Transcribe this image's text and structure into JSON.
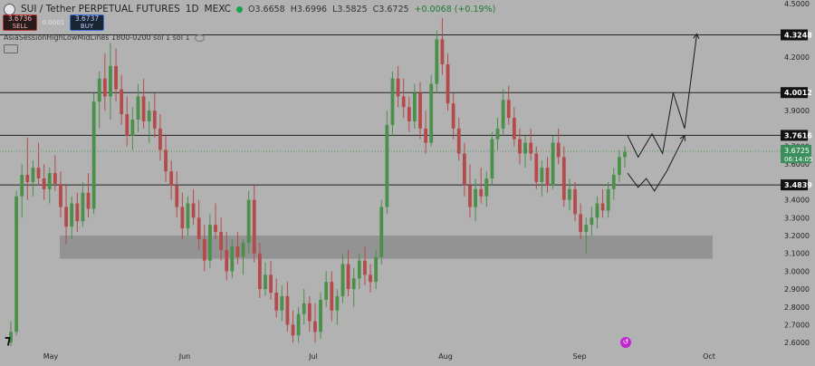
{
  "header": {
    "symbol": "SUI / Tether PERPETUAL FUTURES",
    "interval": "1D",
    "exchange": "MEXC",
    "open": "O3.6658",
    "high": "H3.6996",
    "low": "L3.5825",
    "close": "C3.6725",
    "change": "+0.0068 (+0.19%)"
  },
  "trade": {
    "sell_price": "3.6736",
    "sell_label": "SELL",
    "spread": "0.0001",
    "buy_price": "3.6737",
    "buy_label": "BUY"
  },
  "indicator": {
    "label": "AsiaSessionHighLowMidLines 1800-0200 sol 1 sol 1"
  },
  "colors": {
    "background": "#b2b2b2",
    "up_candle": "#4a8f4a",
    "down_candle": "#b54a4a",
    "zone": "#8d8d8d",
    "level_line": "#222222",
    "current_price_label": "#3a8f5a"
  },
  "icons": [
    "pair-logo-icon",
    "market-open-dot-icon",
    "eye-icon",
    "tradingview-logo-icon",
    "jump-to-date-icon"
  ],
  "chart_data": {
    "type": "candlestick",
    "symbol": "SUI/USDT",
    "timeframe": "1D",
    "ylim": [
      2.55,
      4.5
    ],
    "y_axis_ticks": [
      "2.6000",
      "2.7000",
      "2.8000",
      "2.9000",
      "3.0000",
      "3.1000",
      "3.2000",
      "3.3000",
      "3.4000",
      "3.6000",
      "3.7000",
      "3.9000",
      "4.0000",
      "4.2000",
      "4.5000"
    ],
    "x_axis_ticks": [
      "May",
      "Jun",
      "Jul",
      "Aug",
      "Sep",
      "Oct"
    ],
    "levels": [
      {
        "price": 4.3248,
        "label": "4.3248"
      },
      {
        "price": 4.0012,
        "label": "4.0012"
      },
      {
        "price": 3.7616,
        "label": "3.7616"
      },
      {
        "price": 3.4839,
        "label": "3.4839"
      }
    ],
    "current_price": {
      "price": 3.6725,
      "label": "3.6725",
      "countdown": "06:14:05"
    },
    "demand_zone": {
      "from": 3.07,
      "to": 3.2
    },
    "candles_description": "Daily OHLC from late April to mid September; rally from 2.6 to 4.2 in May, decline to 2.6 in June, rally to 4.4 in late July, pullback to 3.2 in early September, recovery to 3.67",
    "candles": [
      [
        2.6,
        2.72,
        2.58,
        2.66
      ],
      [
        2.66,
        3.45,
        2.64,
        3.42
      ],
      [
        3.42,
        3.6,
        3.3,
        3.54
      ],
      [
        3.54,
        3.75,
        3.4,
        3.5
      ],
      [
        3.5,
        3.62,
        3.42,
        3.58
      ],
      [
        3.58,
        3.72,
        3.48,
        3.52
      ],
      [
        3.52,
        3.6,
        3.4,
        3.46
      ],
      [
        3.46,
        3.58,
        3.38,
        3.55
      ],
      [
        3.55,
        3.65,
        3.45,
        3.49
      ],
      [
        3.49,
        3.56,
        3.3,
        3.36
      ],
      [
        3.36,
        3.48,
        3.15,
        3.25
      ],
      [
        3.25,
        3.42,
        3.18,
        3.38
      ],
      [
        3.38,
        3.44,
        3.22,
        3.28
      ],
      [
        3.28,
        3.5,
        3.25,
        3.44
      ],
      [
        3.44,
        3.55,
        3.3,
        3.35
      ],
      [
        3.35,
        4.0,
        3.32,
        3.95
      ],
      [
        3.95,
        4.12,
        3.8,
        4.08
      ],
      [
        4.08,
        4.22,
        3.9,
        3.98
      ],
      [
        3.98,
        4.28,
        3.85,
        4.15
      ],
      [
        4.15,
        4.25,
        3.95,
        4.02
      ],
      [
        4.02,
        4.1,
        3.82,
        3.88
      ],
      [
        3.88,
        3.98,
        3.7,
        3.76
      ],
      [
        3.76,
        3.92,
        3.68,
        3.85
      ],
      [
        3.85,
        4.05,
        3.78,
        3.98
      ],
      [
        3.98,
        4.08,
        3.8,
        3.84
      ],
      [
        3.84,
        3.95,
        3.72,
        3.9
      ],
      [
        3.9,
        4.0,
        3.75,
        3.8
      ],
      [
        3.8,
        3.88,
        3.62,
        3.68
      ],
      [
        3.68,
        3.76,
        3.5,
        3.56
      ],
      [
        3.56,
        3.62,
        3.4,
        3.48
      ],
      [
        3.48,
        3.56,
        3.3,
        3.36
      ],
      [
        3.36,
        3.44,
        3.18,
        3.24
      ],
      [
        3.24,
        3.42,
        3.2,
        3.38
      ],
      [
        3.38,
        3.46,
        3.26,
        3.3
      ],
      [
        3.3,
        3.4,
        3.12,
        3.18
      ],
      [
        3.18,
        3.26,
        3.0,
        3.06
      ],
      [
        3.06,
        3.32,
        3.02,
        3.26
      ],
      [
        3.26,
        3.38,
        3.18,
        3.22
      ],
      [
        3.22,
        3.3,
        3.06,
        3.12
      ],
      [
        3.12,
        3.22,
        2.95,
        3.0
      ],
      [
        3.0,
        3.18,
        2.96,
        3.14
      ],
      [
        3.14,
        3.22,
        3.04,
        3.08
      ],
      [
        3.08,
        3.18,
        2.98,
        3.16
      ],
      [
        3.16,
        3.45,
        3.1,
        3.4
      ],
      [
        3.4,
        3.48,
        3.05,
        3.1
      ],
      [
        3.1,
        3.16,
        2.85,
        2.9
      ],
      [
        2.9,
        3.05,
        2.86,
        2.98
      ],
      [
        2.98,
        3.06,
        2.84,
        2.88
      ],
      [
        2.88,
        2.96,
        2.74,
        2.78
      ],
      [
        2.78,
        2.92,
        2.72,
        2.86
      ],
      [
        2.86,
        2.94,
        2.66,
        2.7
      ],
      [
        2.7,
        2.78,
        2.6,
        2.64
      ],
      [
        2.64,
        2.8,
        2.6,
        2.76
      ],
      [
        2.76,
        2.9,
        2.7,
        2.82
      ],
      [
        2.82,
        2.86,
        2.66,
        2.72
      ],
      [
        2.72,
        2.82,
        2.6,
        2.66
      ],
      [
        2.66,
        2.88,
        2.62,
        2.84
      ],
      [
        2.84,
        3.0,
        2.8,
        2.94
      ],
      [
        2.94,
        3.0,
        2.72,
        2.78
      ],
      [
        2.78,
        2.9,
        2.7,
        2.86
      ],
      [
        2.86,
        3.1,
        2.82,
        3.04
      ],
      [
        3.04,
        3.12,
        2.86,
        2.9
      ],
      [
        2.9,
        3.02,
        2.8,
        2.96
      ],
      [
        2.96,
        3.1,
        2.9,
        3.06
      ],
      [
        3.06,
        3.14,
        2.92,
        2.98
      ],
      [
        2.98,
        3.04,
        2.88,
        2.94
      ],
      [
        2.94,
        3.12,
        2.9,
        3.08
      ],
      [
        3.08,
        3.4,
        3.04,
        3.36
      ],
      [
        3.36,
        3.9,
        3.32,
        3.82
      ],
      [
        3.82,
        4.12,
        3.76,
        4.08
      ],
      [
        4.08,
        4.15,
        3.92,
        3.98
      ],
      [
        3.98,
        4.08,
        3.86,
        3.92
      ],
      [
        3.92,
        3.98,
        3.78,
        3.84
      ],
      [
        3.84,
        4.05,
        3.8,
        4.0
      ],
      [
        4.0,
        4.06,
        3.74,
        3.8
      ],
      [
        3.8,
        3.9,
        3.66,
        3.72
      ],
      [
        3.72,
        4.1,
        3.7,
        4.05
      ],
      [
        4.05,
        4.35,
        4.0,
        4.3
      ],
      [
        4.3,
        4.42,
        4.1,
        4.16
      ],
      [
        4.16,
        4.22,
        3.9,
        3.94
      ],
      [
        3.94,
        4.0,
        3.74,
        3.8
      ],
      [
        3.8,
        3.86,
        3.62,
        3.66
      ],
      [
        3.66,
        3.72,
        3.42,
        3.48
      ],
      [
        3.48,
        3.6,
        3.3,
        3.36
      ],
      [
        3.36,
        3.52,
        3.28,
        3.46
      ],
      [
        3.46,
        3.58,
        3.38,
        3.42
      ],
      [
        3.42,
        3.56,
        3.36,
        3.52
      ],
      [
        3.52,
        3.78,
        3.48,
        3.74
      ],
      [
        3.74,
        3.86,
        3.68,
        3.8
      ],
      [
        3.8,
        4.02,
        3.76,
        3.96
      ],
      [
        3.96,
        4.04,
        3.82,
        3.86
      ],
      [
        3.86,
        3.92,
        3.7,
        3.74
      ],
      [
        3.74,
        3.8,
        3.6,
        3.66
      ],
      [
        3.66,
        3.76,
        3.58,
        3.72
      ],
      [
        3.72,
        3.8,
        3.62,
        3.66
      ],
      [
        3.66,
        3.7,
        3.46,
        3.5
      ],
      [
        3.5,
        3.62,
        3.42,
        3.58
      ],
      [
        3.58,
        3.64,
        3.44,
        3.48
      ],
      [
        3.48,
        3.76,
        3.46,
        3.72
      ],
      [
        3.72,
        3.8,
        3.6,
        3.64
      ],
      [
        3.64,
        3.7,
        3.36,
        3.4
      ],
      [
        3.4,
        3.52,
        3.34,
        3.46
      ],
      [
        3.46,
        3.5,
        3.28,
        3.32
      ],
      [
        3.32,
        3.38,
        3.18,
        3.22
      ],
      [
        3.22,
        3.3,
        3.1,
        3.26
      ],
      [
        3.26,
        3.36,
        3.2,
        3.3
      ],
      [
        3.3,
        3.42,
        3.24,
        3.38
      ],
      [
        3.38,
        3.46,
        3.3,
        3.34
      ],
      [
        3.34,
        3.5,
        3.3,
        3.46
      ],
      [
        3.46,
        3.58,
        3.4,
        3.54
      ],
      [
        3.54,
        3.68,
        3.5,
        3.64
      ],
      [
        3.64,
        3.7,
        3.58,
        3.67
      ]
    ],
    "projection_paths": [
      {
        "name": "upper",
        "points": [
          [
            0.77,
            3.76
          ],
          [
            0.783,
            3.64
          ],
          [
            0.8,
            3.77
          ],
          [
            0.813,
            3.66
          ],
          [
            0.826,
            4.0
          ],
          [
            0.84,
            3.8
          ],
          [
            0.855,
            4.33
          ]
        ]
      },
      {
        "name": "lower",
        "points": [
          [
            0.77,
            3.55
          ],
          [
            0.783,
            3.47
          ],
          [
            0.793,
            3.52
          ],
          [
            0.803,
            3.45
          ],
          [
            0.818,
            3.56
          ],
          [
            0.84,
            3.76
          ]
        ]
      }
    ]
  }
}
